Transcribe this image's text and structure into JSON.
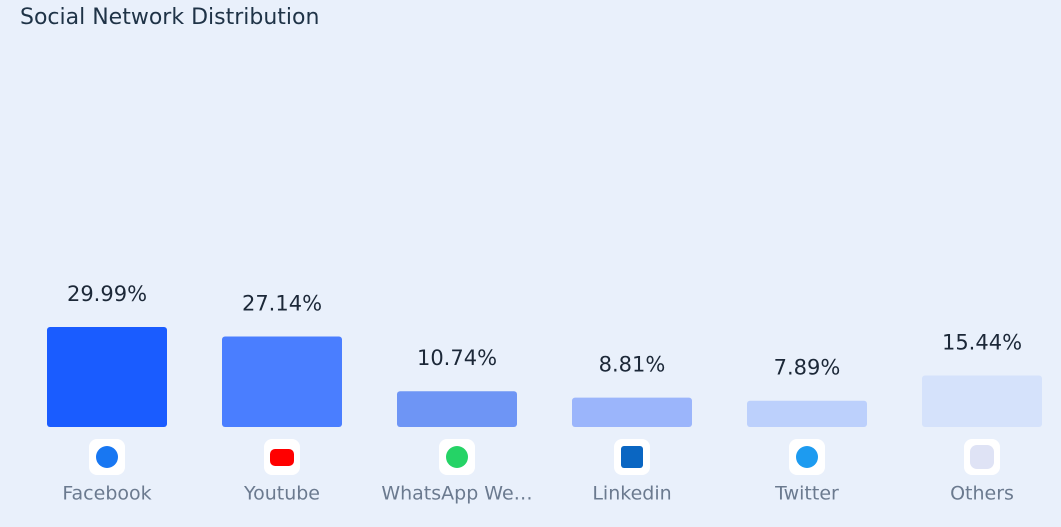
{
  "chart_data": {
    "type": "bar",
    "title": "Social Network Distribution",
    "categories": [
      "Facebook",
      "Youtube",
      "WhatsApp We…",
      "Linkedin",
      "Twitter",
      "Others"
    ],
    "values": [
      29.99,
      27.14,
      10.74,
      8.81,
      7.89,
      15.44
    ],
    "value_labels": [
      "29.99%",
      "27.14%",
      "10.74%",
      "8.81%",
      "7.89%",
      "15.44%"
    ],
    "colors": [
      "#1a5cff",
      "#4a7eff",
      "#6e95f5",
      "#9bb5fb",
      "#bcd0fc",
      "#d5e2fb"
    ],
    "grid": false
  }
}
